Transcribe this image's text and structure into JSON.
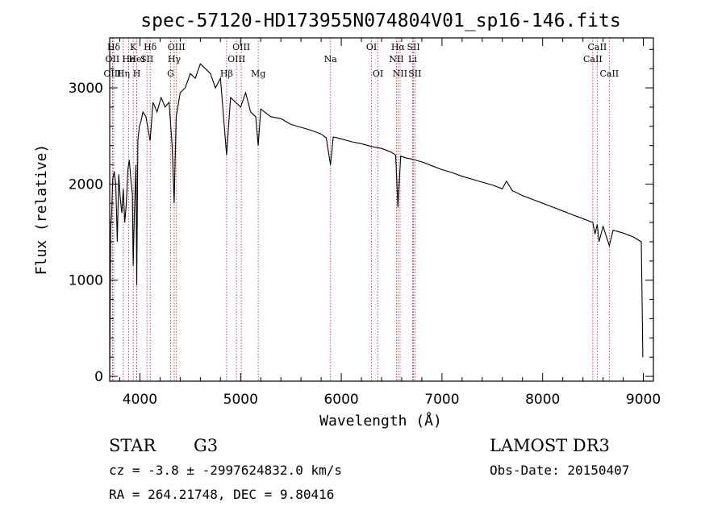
{
  "chart_data": {
    "type": "line",
    "title": "spec-57120-HD173955N074804V01_sp16-146.fits",
    "xlabel": "Wavelength (Å)",
    "ylabel": "Flux (relative)",
    "xlim": [
      3700,
      9100
    ],
    "ylim": [
      -50,
      3520
    ],
    "x_ticks": [
      4000,
      5000,
      6000,
      7000,
      8000,
      9000
    ],
    "y_ticks": [
      0,
      1000,
      2000,
      3000
    ],
    "series": [
      {
        "name": "flux",
        "x": [
          3700,
          3710,
          3720,
          3730,
          3745,
          3760,
          3775,
          3790,
          3805,
          3820,
          3835,
          3850,
          3865,
          3880,
          3895,
          3910,
          3925,
          3933,
          3945,
          3960,
          3968,
          3980,
          3995,
          4010,
          4030,
          4060,
          4101,
          4130,
          4170,
          4210,
          4250,
          4290,
          4320,
          4340,
          4360,
          4400,
          4450,
          4500,
          4550,
          4600,
          4650,
          4700,
          4750,
          4800,
          4861,
          4900,
          4950,
          5000,
          5050,
          5100,
          5150,
          5175,
          5200,
          5300,
          5400,
          5500,
          5600,
          5700,
          5800,
          5850,
          5893,
          5920,
          6000,
          6100,
          6200,
          6300,
          6400,
          6500,
          6540,
          6563,
          6590,
          6650,
          6700,
          6800,
          6900,
          7000,
          7100,
          7200,
          7300,
          7400,
          7500,
          7600,
          7640,
          7700,
          7800,
          7900,
          8000,
          8100,
          8200,
          8300,
          8400,
          8498,
          8520,
          8542,
          8560,
          8600,
          8662,
          8700,
          8800,
          8900,
          8980,
          8995
        ],
        "values": [
          0,
          1550,
          1700,
          2050,
          2130,
          2000,
          1400,
          2100,
          1850,
          1700,
          1950,
          1600,
          1800,
          2150,
          2250,
          2050,
          1900,
          1150,
          1700,
          2200,
          950,
          2450,
          2600,
          2650,
          2750,
          2700,
          2450,
          2850,
          2750,
          2900,
          2800,
          2850,
          2400,
          1800,
          2700,
          2950,
          3000,
          3150,
          3100,
          3250,
          3200,
          3150,
          3000,
          3100,
          2300,
          2900,
          2850,
          2800,
          2950,
          2750,
          2700,
          2400,
          2780,
          2700,
          2680,
          2620,
          2590,
          2560,
          2520,
          2480,
          2200,
          2490,
          2470,
          2440,
          2420,
          2390,
          2370,
          2330,
          2300,
          1760,
          2290,
          2270,
          2260,
          2230,
          2190,
          2150,
          2120,
          2080,
          2050,
          2020,
          1990,
          1950,
          2030,
          1930,
          1880,
          1840,
          1800,
          1760,
          1720,
          1680,
          1640,
          1600,
          1480,
          1580,
          1400,
          1560,
          1360,
          1520,
          1490,
          1450,
          1400,
          200
        ]
      }
    ],
    "spectral_lines": [
      {
        "label": "Hδ",
        "x": 3740,
        "row": 1
      },
      {
        "label": "OII",
        "x": 3727,
        "row": 2
      },
      {
        "label": "OIII",
        "x": 3727,
        "row": 3
      },
      {
        "label": "He",
        "x": 3889,
        "row": 2
      },
      {
        "label": "Hη",
        "x": 3835,
        "row": 3
      },
      {
        "label": "K",
        "x": 3934,
        "row": 1
      },
      {
        "label": "HeI",
        "x": 3970,
        "row": 2
      },
      {
        "label": "H",
        "x": 3969,
        "row": 3
      },
      {
        "label": "SII",
        "x": 4070,
        "row": 2
      },
      {
        "label": "Hδ",
        "x": 4102,
        "row": 1
      },
      {
        "label": "OIII",
        "x": 4363,
        "row": 1
      },
      {
        "label": "Hγ",
        "x": 4341,
        "row": 2
      },
      {
        "label": "G",
        "x": 4305,
        "row": 3
      },
      {
        "label": "OIII",
        "x": 5007,
        "row": 1
      },
      {
        "label": "OIII",
        "x": 4959,
        "row": 2
      },
      {
        "label": "Hβ",
        "x": 4861,
        "row": 3
      },
      {
        "label": "Mg",
        "x": 5175,
        "row": 3
      },
      {
        "label": "Na",
        "x": 5893,
        "row": 2
      },
      {
        "label": "OI",
        "x": 6300,
        "row": 1
      },
      {
        "label": "OI",
        "x": 6364,
        "row": 3
      },
      {
        "label": "Hα",
        "x": 6563,
        "row": 1
      },
      {
        "label": "NII",
        "x": 6548,
        "row": 2
      },
      {
        "label": "NII",
        "x": 6584,
        "row": 3
      },
      {
        "label": "SII",
        "x": 6717,
        "row": 1
      },
      {
        "label": "Li",
        "x": 6708,
        "row": 2
      },
      {
        "label": "SII",
        "x": 6731,
        "row": 3
      },
      {
        "label": "CaII",
        "x": 8542,
        "row": 1
      },
      {
        "label": "CaII",
        "x": 8498,
        "row": 2
      },
      {
        "label": "CaII",
        "x": 8662,
        "row": 3
      }
    ],
    "annotations": {
      "object_class": "STAR",
      "subclass": "G3",
      "survey": "LAMOST DR3",
      "redshift": "cz = -3.8 ± -2997624832.0 km/s",
      "obs_date": "Obs-Date: 20150407",
      "coords": "RA = 264.21748, DEC =   9.80416"
    }
  },
  "colors": {
    "spectrum": "#000000",
    "line_marker": "#b22222",
    "axis": "#000000"
  }
}
